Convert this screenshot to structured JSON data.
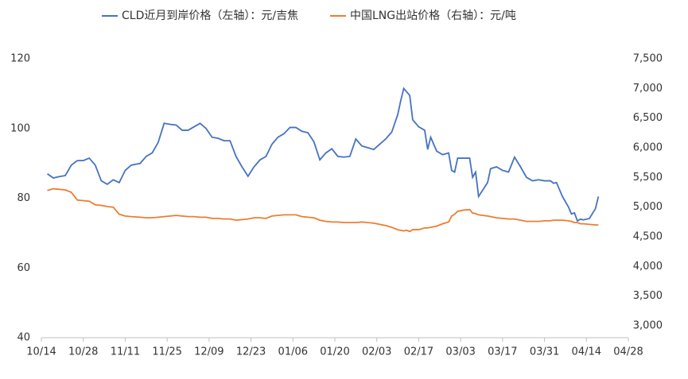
{
  "chart_data": {
    "type": "line",
    "x": [
      "10/16",
      "10/18",
      "10/20",
      "10/22",
      "10/24",
      "10/26",
      "10/28",
      "10/30",
      "11/01",
      "11/03",
      "11/05",
      "11/07",
      "11/09",
      "11/11",
      "11/13",
      "11/16",
      "11/18",
      "11/20",
      "11/22",
      "11/24",
      "11/26",
      "11/28",
      "11/30",
      "12/02",
      "12/04",
      "12/06",
      "12/08",
      "12/10",
      "12/12",
      "12/14",
      "12/16",
      "12/18",
      "12/20",
      "12/22",
      "12/24",
      "12/26",
      "12/28",
      "12/30",
      "01/01",
      "01/03",
      "01/05",
      "01/07",
      "01/09",
      "01/11",
      "01/13",
      "01/15",
      "01/17",
      "01/19",
      "01/21",
      "01/23",
      "01/25",
      "01/27",
      "01/29",
      "01/31",
      "02/02",
      "02/04",
      "02/06",
      "02/08",
      "02/10",
      "02/11",
      "02/12",
      "02/13",
      "02/14",
      "02/15",
      "02/17",
      "02/19",
      "02/20",
      "02/21",
      "02/23",
      "02/25",
      "02/27",
      "02/28",
      "03/01",
      "03/02",
      "03/04",
      "03/06",
      "03/07",
      "03/08",
      "03/09",
      "03/12",
      "03/13",
      "03/15",
      "03/17",
      "03/19",
      "03/21",
      "03/23",
      "03/25",
      "03/27",
      "03/29",
      "03/31",
      "04/02",
      "04/03",
      "04/04",
      "04/06",
      "04/08",
      "04/09",
      "04/10",
      "04/11",
      "04/12",
      "04/13",
      "04/15",
      "04/17",
      "04/18"
    ],
    "series": [
      {
        "name": "CLD近月到岸价格（左轴）：元/吉焦",
        "color": "#4472c4",
        "axis": "y",
        "values": [
          87,
          85.8,
          86.2,
          86.5,
          89.5,
          90.8,
          90.8,
          91.5,
          89.5,
          85,
          84,
          85.3,
          84.5,
          88,
          89.5,
          90,
          92,
          93,
          96,
          101.5,
          101.2,
          101,
          99.5,
          99.5,
          100.5,
          101.5,
          100,
          97.5,
          97.2,
          96.5,
          96.5,
          92,
          89,
          86.3,
          89,
          91,
          92,
          95.5,
          97.5,
          98.5,
          100.3,
          100.3,
          99.2,
          98.8,
          96.2,
          91,
          93,
          94.2,
          92,
          91.8,
          92,
          97,
          95,
          94.5,
          94,
          95.5,
          97,
          99,
          104,
          108,
          111.5,
          110.5,
          109.5,
          102.5,
          100.5,
          99.5,
          94,
          97.5,
          93.5,
          92.5,
          93,
          88,
          87.5,
          91.5,
          91.5,
          91.5,
          86,
          87.5,
          80.5,
          84.5,
          88.5,
          89,
          88,
          87.5,
          91.8,
          89,
          86,
          85,
          85.3,
          85,
          85,
          84.3,
          84.5,
          80.5,
          77.5,
          75.5,
          75.8,
          73.5,
          74,
          73.8,
          74.2,
          77,
          80.5
        ]
      },
      {
        "name": "中国LNG出站价格（右轴）：元/吨",
        "color": "#ed7d31",
        "axis": "y2",
        "values": [
          5280,
          5310,
          5300,
          5290,
          5250,
          5120,
          5110,
          5100,
          5040,
          5030,
          5010,
          5000,
          4880,
          4850,
          4840,
          4830,
          4820,
          4820,
          4830,
          4840,
          4850,
          4860,
          4850,
          4840,
          4840,
          4830,
          4830,
          4810,
          4810,
          4800,
          4800,
          4780,
          4790,
          4800,
          4820,
          4820,
          4810,
          4850,
          4860,
          4870,
          4870,
          4870,
          4840,
          4830,
          4820,
          4780,
          4760,
          4750,
          4750,
          4740,
          4740,
          4740,
          4750,
          4740,
          4730,
          4710,
          4690,
          4660,
          4620,
          4610,
          4600,
          4610,
          4590,
          4620,
          4620,
          4650,
          4650,
          4660,
          4680,
          4720,
          4750,
          4850,
          4880,
          4930,
          4950,
          4960,
          4900,
          4890,
          4870,
          4850,
          4840,
          4820,
          4810,
          4800,
          4800,
          4780,
          4760,
          4760,
          4760,
          4770,
          4770,
          4780,
          4780,
          4780,
          4770,
          4760,
          4740,
          4740,
          4720,
          4720,
          4710,
          4700,
          4700
        ]
      }
    ],
    "xlim": [
      "10/14",
      "04/28"
    ],
    "xticks": [
      "10/14",
      "10/28",
      "11/11",
      "11/25",
      "12/09",
      "12/23",
      "01/06",
      "01/20",
      "02/03",
      "02/17",
      "03/03",
      "03/17",
      "03/31",
      "04/14",
      "04/28"
    ],
    "ylim": [
      40,
      120
    ],
    "yticks": [
      40,
      60,
      80,
      100,
      120
    ],
    "y2lim": [
      2800,
      7500
    ],
    "y2ticks": [
      {
        "value": 3000,
        "label": "3,000"
      },
      {
        "value": 3500,
        "label": "3,500"
      },
      {
        "value": 4000,
        "label": "4,000"
      },
      {
        "value": 4500,
        "label": "4,500"
      },
      {
        "value": 5000,
        "label": "5,000"
      },
      {
        "value": 5500,
        "label": "5,500"
      },
      {
        "value": 6000,
        "label": "6,000"
      },
      {
        "value": 6500,
        "label": "6,500"
      },
      {
        "value": 7000,
        "label": "7,000"
      },
      {
        "value": 7500,
        "label": "7,500"
      }
    ],
    "legend": "top",
    "grid": false
  }
}
